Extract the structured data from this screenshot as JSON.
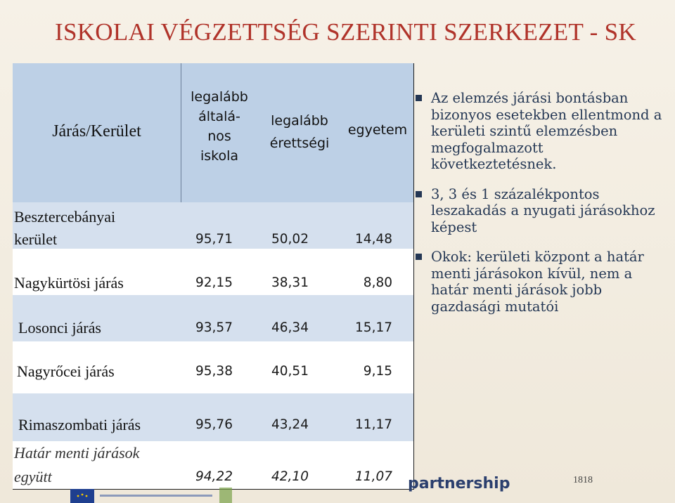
{
  "title": "ISKOLAI VÉGZETTSÉG SZERINTI SZERKEZET - SK",
  "table": {
    "headers": {
      "district": "Járás/Kerület",
      "elementary": [
        "legalább",
        "általá-",
        "nos",
        "iskola"
      ],
      "graduation": [
        "legalább",
        "érettségi"
      ],
      "university": "egyetem"
    },
    "rows": [
      {
        "name": [
          "Besztercebányai",
          "kerület"
        ],
        "v1": "95,71",
        "v2": "50,02",
        "v3": "14,48"
      },
      {
        "name": [
          "Nagykürtösi járás"
        ],
        "v1": "92,15",
        "v2": "38,31",
        "v3": "8,80"
      },
      {
        "name": [
          "Losonci járás"
        ],
        "v1": "93,57",
        "v2": "46,34",
        "v3": "15,17"
      },
      {
        "name": [
          "Nagyrőcei járás"
        ],
        "v1": "95,38",
        "v2": "40,51",
        "v3": "9,15"
      },
      {
        "name": [
          "Rimaszombati járás"
        ],
        "v1": "95,76",
        "v2": "43,24",
        "v3": "11,17"
      },
      {
        "name": [
          "Határ menti járások",
          "együtt"
        ],
        "v1": "94,22",
        "v2": "42,10",
        "v3": "11,07"
      }
    ]
  },
  "bullets": [
    "Az elemzés járási bontásban bizonyos esetekben ellentmond a kerületi szintű elemzésben megfogalmazott következtetésnek.",
    "3, 3 és 1 százalékpontos leszakadás a nyugati járásokhoz képest",
    "Okok: kerületi központ a határ menti járásokon kívül, nem a határ menti járások jobb gazdasági mutatói"
  ],
  "footer": {
    "partnership": "partnership",
    "page_number": "1818"
  },
  "colors": {
    "title": "#b0332a",
    "header_band": "#bdd0e6",
    "row_band": "#d5e0ee",
    "bullet_text": "#243754"
  }
}
